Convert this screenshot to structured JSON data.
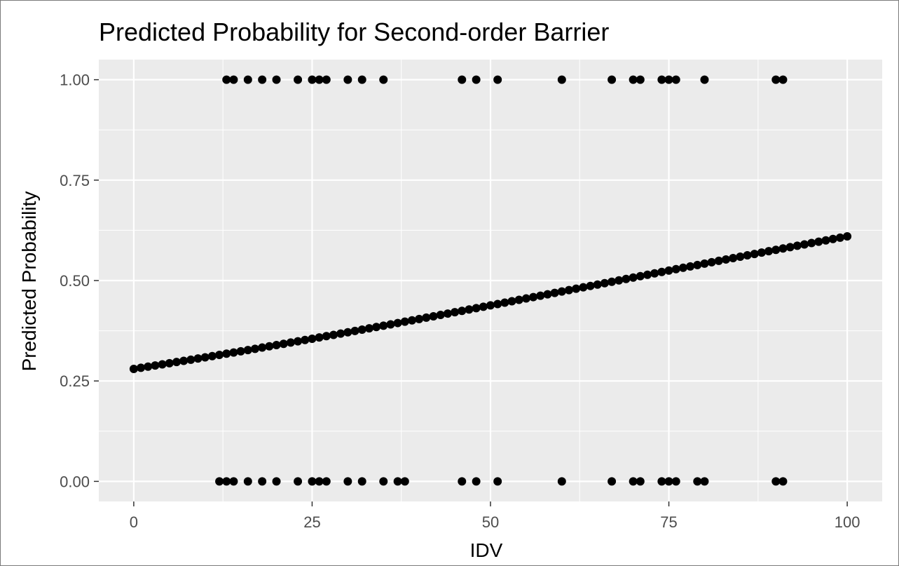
{
  "chart_data": {
    "type": "scatter",
    "title": "Predicted Probability for Second-order Barrier",
    "xlabel": "IDV",
    "ylabel": "Predicted Probability",
    "xlim": [
      -4.9,
      104.9
    ],
    "ylim": [
      -0.05,
      1.05
    ],
    "x_ticks": [
      0,
      25,
      50,
      75,
      100
    ],
    "x_tick_labels": [
      "0",
      "25",
      "50",
      "75",
      "100"
    ],
    "y_ticks": [
      0,
      0.25,
      0.5,
      0.75,
      1
    ],
    "y_tick_labels": [
      "0.00",
      "0.25",
      "0.50",
      "0.75",
      "1.00"
    ],
    "grid": true,
    "panel_background": "#ebebeb",
    "grid_color": "#ffffff",
    "point_color": "#000000",
    "predicted_curve": {
      "x_start": 0,
      "x_end": 100,
      "x_step": 1,
      "y_at_0": 0.28,
      "y_at_100": 0.61
    },
    "observed_y1": [
      13,
      14,
      16,
      18,
      20,
      23,
      25,
      26,
      27,
      30,
      32,
      35,
      46,
      48,
      51,
      60,
      67,
      70,
      71,
      74,
      75,
      76,
      80,
      90,
      91
    ],
    "observed_y0": [
      12,
      13,
      14,
      16,
      18,
      20,
      23,
      25,
      26,
      27,
      30,
      32,
      35,
      37,
      38,
      46,
      48,
      51,
      60,
      67,
      70,
      71,
      74,
      75,
      76,
      79,
      80,
      90,
      91
    ]
  }
}
